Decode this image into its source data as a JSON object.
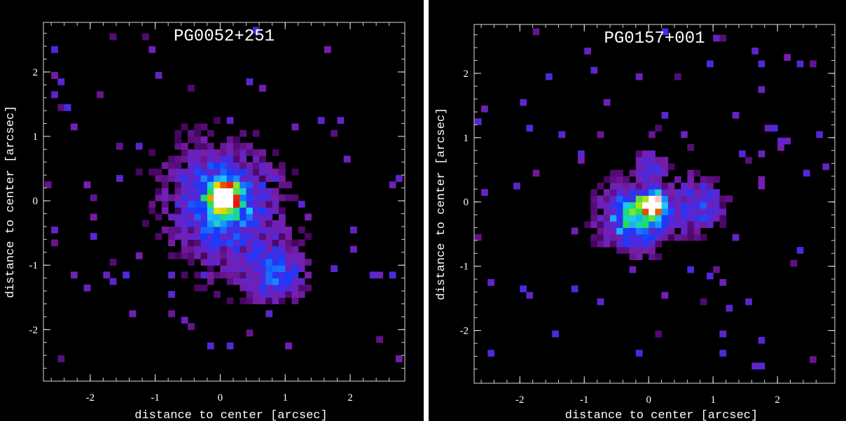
{
  "chart_data": [
    {
      "type": "image",
      "title": "PG0052+251",
      "x_label": "distance to center [arcsec]",
      "y_label": "distance to center [arcsec]",
      "xlim": [
        -2.72,
        2.84
      ],
      "ylim": [
        -2.8,
        2.77
      ],
      "xticks": [
        -2,
        -1,
        0,
        1,
        2
      ],
      "yticks": [
        -2,
        -1,
        0,
        1,
        2
      ]
    },
    {
      "type": "image",
      "title": "PG0157+001",
      "x_label": "distance to center [arcsec]",
      "y_label": "distance to center [arcsec]",
      "xlim": [
        -2.71,
        2.89
      ],
      "ylim": [
        -2.82,
        2.76
      ],
      "xticks": [
        -2,
        -1,
        0,
        1,
        2
      ],
      "yticks": [
        -2,
        -1,
        0,
        1,
        2
      ]
    }
  ]
}
